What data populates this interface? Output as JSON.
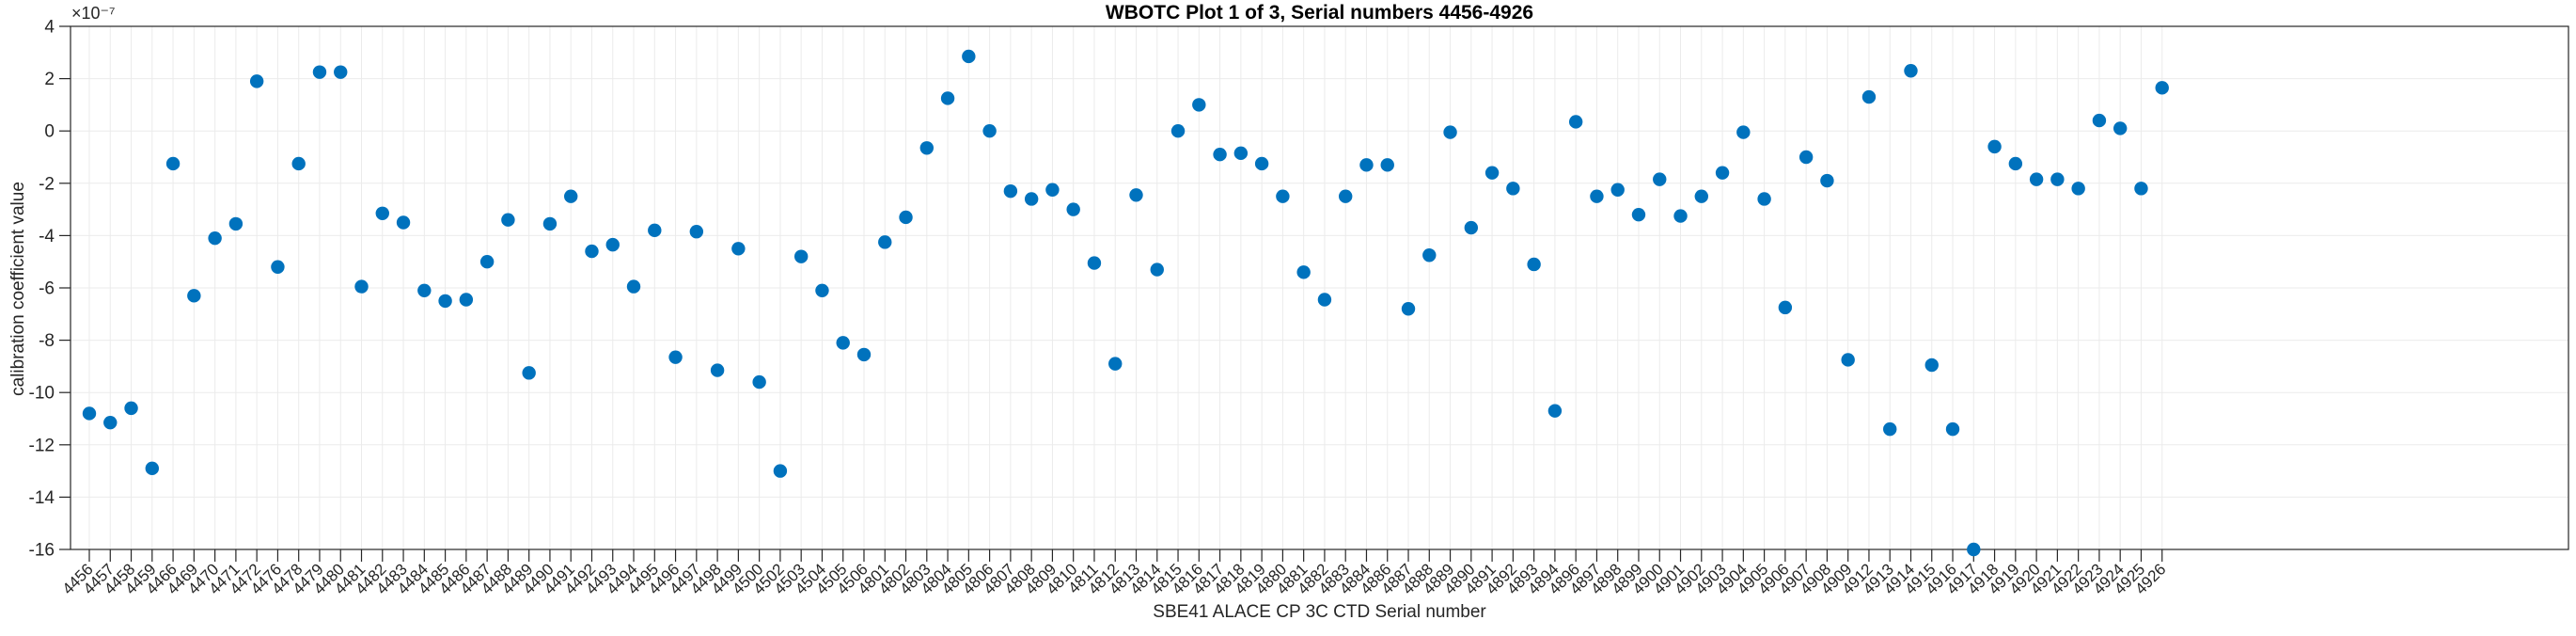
{
  "figure": {
    "title": "WBOTC Plot 1 of 3, Serial numbers 4456-4926",
    "background": "#ffffff"
  },
  "chart_data": {
    "type": "scatter",
    "title": "WBOTC Plot 1 of 3, Serial numbers 4456-4926",
    "xlabel": "SBE41 ALACE CP 3C CTD Serial number",
    "ylabel": "calibration coefficient value",
    "y_exponent_label": "×10⁻⁷",
    "value_scale_note": "all values are ×10^-7",
    "ylim": [
      -16,
      4
    ],
    "yticks": [
      4,
      2,
      0,
      -2,
      -4,
      -6,
      -8,
      -10,
      -12,
      -14,
      -16
    ],
    "grid": true,
    "legend_position": "none",
    "marker_color": "#0072BD",
    "axis_color": "#262626",
    "grid_color": "#ebebeb",
    "categories": [
      "4456",
      "4457",
      "4458",
      "4459",
      "4466",
      "4469",
      "4470",
      "4471",
      "4472",
      "4476",
      "4478",
      "4479",
      "4480",
      "4481",
      "4482",
      "4483",
      "4484",
      "4485",
      "4486",
      "4487",
      "4488",
      "4489",
      "4490",
      "4491",
      "4492",
      "4493",
      "4494",
      "4495",
      "4496",
      "4497",
      "4498",
      "4499",
      "4500",
      "4502",
      "4503",
      "4504",
      "4505",
      "4506",
      "4801",
      "4802",
      "4803",
      "4804",
      "4805",
      "4806",
      "4807",
      "4808",
      "4809",
      "4810",
      "4811",
      "4812",
      "4813",
      "4814",
      "4815",
      "4816",
      "4817",
      "4818",
      "4819",
      "4880",
      "4881",
      "4882",
      "4883",
      "4884",
      "4886",
      "4887",
      "4888",
      "4889",
      "4890",
      "4891",
      "4892",
      "4893",
      "4894",
      "4896",
      "4897",
      "4898",
      "4899",
      "4900",
      "4901",
      "4902",
      "4903",
      "4904",
      "4905",
      "4906",
      "4907",
      "4908",
      "4909",
      "4912",
      "4913",
      "4914",
      "4915",
      "4916",
      "4917",
      "4918",
      "4919",
      "4920",
      "4921",
      "4922",
      "4923",
      "4924",
      "4925",
      "4926"
    ],
    "values": [
      -10.8,
      -11.15,
      -10.6,
      -12.9,
      -1.25,
      -6.3,
      -4.1,
      -3.55,
      1.9,
      -5.2,
      -1.25,
      2.25,
      2.25,
      -5.95,
      -3.15,
      -3.5,
      -6.1,
      -6.5,
      -6.45,
      -5.0,
      -3.4,
      -9.25,
      -3.55,
      -2.5,
      -4.6,
      -4.35,
      -5.95,
      -3.8,
      -8.65,
      -3.85,
      -9.15,
      -4.5,
      -9.6,
      -13.0,
      -4.8,
      -6.1,
      -8.1,
      -8.55,
      -4.25,
      -3.3,
      -0.65,
      1.25,
      2.85,
      0.0,
      -2.3,
      -2.6,
      -2.25,
      -3.0,
      -5.05,
      -8.9,
      -2.45,
      -5.3,
      0.0,
      1.0,
      -0.9,
      -0.85,
      -1.25,
      -2.5,
      -5.4,
      -6.45,
      -2.5,
      -1.3,
      -1.3,
      -6.8,
      -4.75,
      -0.05,
      -3.7,
      -1.6,
      -2.2,
      -5.1,
      -10.7,
      0.35,
      -2.5,
      -2.25,
      -3.2,
      -1.85,
      -3.25,
      -2.5,
      -1.6,
      -0.05,
      -2.6,
      -6.75,
      -1.0,
      -1.9,
      -8.75,
      1.3,
      -11.4,
      2.3,
      -8.95,
      -11.4,
      -16.0,
      -0.6,
      -1.25,
      -1.85,
      -1.85,
      -2.2,
      0.4,
      0.1,
      -2.2,
      1.65
    ]
  }
}
